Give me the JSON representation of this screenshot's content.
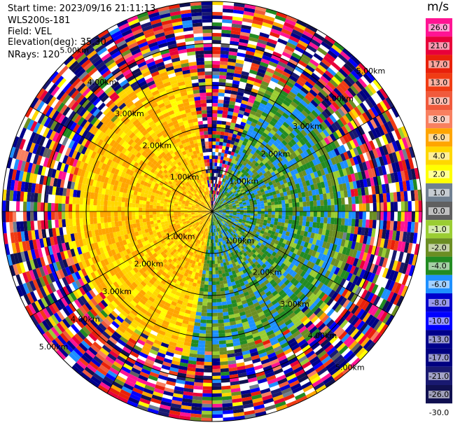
{
  "header": {
    "start_time": "Start time: 2023/09/16 21:11:13",
    "instrument": "WLS200s-181",
    "field": "Field: VEL",
    "elevation": "Elevation(deg): 35.30",
    "nrays": "NRays: 120"
  },
  "colorbar": {
    "unit": "m/s",
    "ticks": [
      "26.0",
      "21.0",
      "17.0",
      "13.0",
      "10.0",
      "8.0",
      "6.0",
      "4.0",
      "2.0",
      "1.0",
      "0.0",
      "-1.0",
      "-2.0",
      "-4.0",
      "-6.0",
      "-8.0",
      "-10.0",
      "-13.0",
      "-17.0",
      "-21.0",
      "-26.0",
      "-30.0"
    ],
    "colors": [
      "#ff1493",
      "#e8003a",
      "#e8200a",
      "#f03c14",
      "#f05a3c",
      "#f88060",
      "#ffa500",
      "#ffd700",
      "#ffff00",
      "#708090",
      "#606060",
      "#9acd32",
      "#6b8e23",
      "#228b22",
      "#1e90ff",
      "#0000cd",
      "#0000ff",
      "#00008b",
      "#000080",
      "#191970",
      "#101050"
    ]
  },
  "chart_data": {
    "type": "ppi_radar",
    "field": "VEL",
    "units": "m/s",
    "nrays": 120,
    "range_rings_km": [
      1.0,
      2.0,
      3.0,
      4.0,
      5.0
    ],
    "range_ring_labels": [
      "1.00km",
      "2.00km",
      "3.00km",
      "4.00km",
      "5.00km"
    ],
    "spokes_deg": [
      0,
      30,
      60,
      90,
      120,
      150,
      180,
      210,
      240,
      270,
      300,
      330
    ],
    "max_range_km": 5.0,
    "sectors": [
      {
        "azimuth_from_deg": 190,
        "azimuth_to_deg": 350,
        "range_to_km": 3.5,
        "value_range_ms": [
          1,
          6
        ]
      },
      {
        "azimuth_from_deg": 20,
        "azimuth_to_deg": 190,
        "range_to_km": 3.5,
        "value_range_ms": [
          -8,
          -1
        ]
      }
    ],
    "outer_region_note_ms": [
      -30,
      26
    ]
  }
}
